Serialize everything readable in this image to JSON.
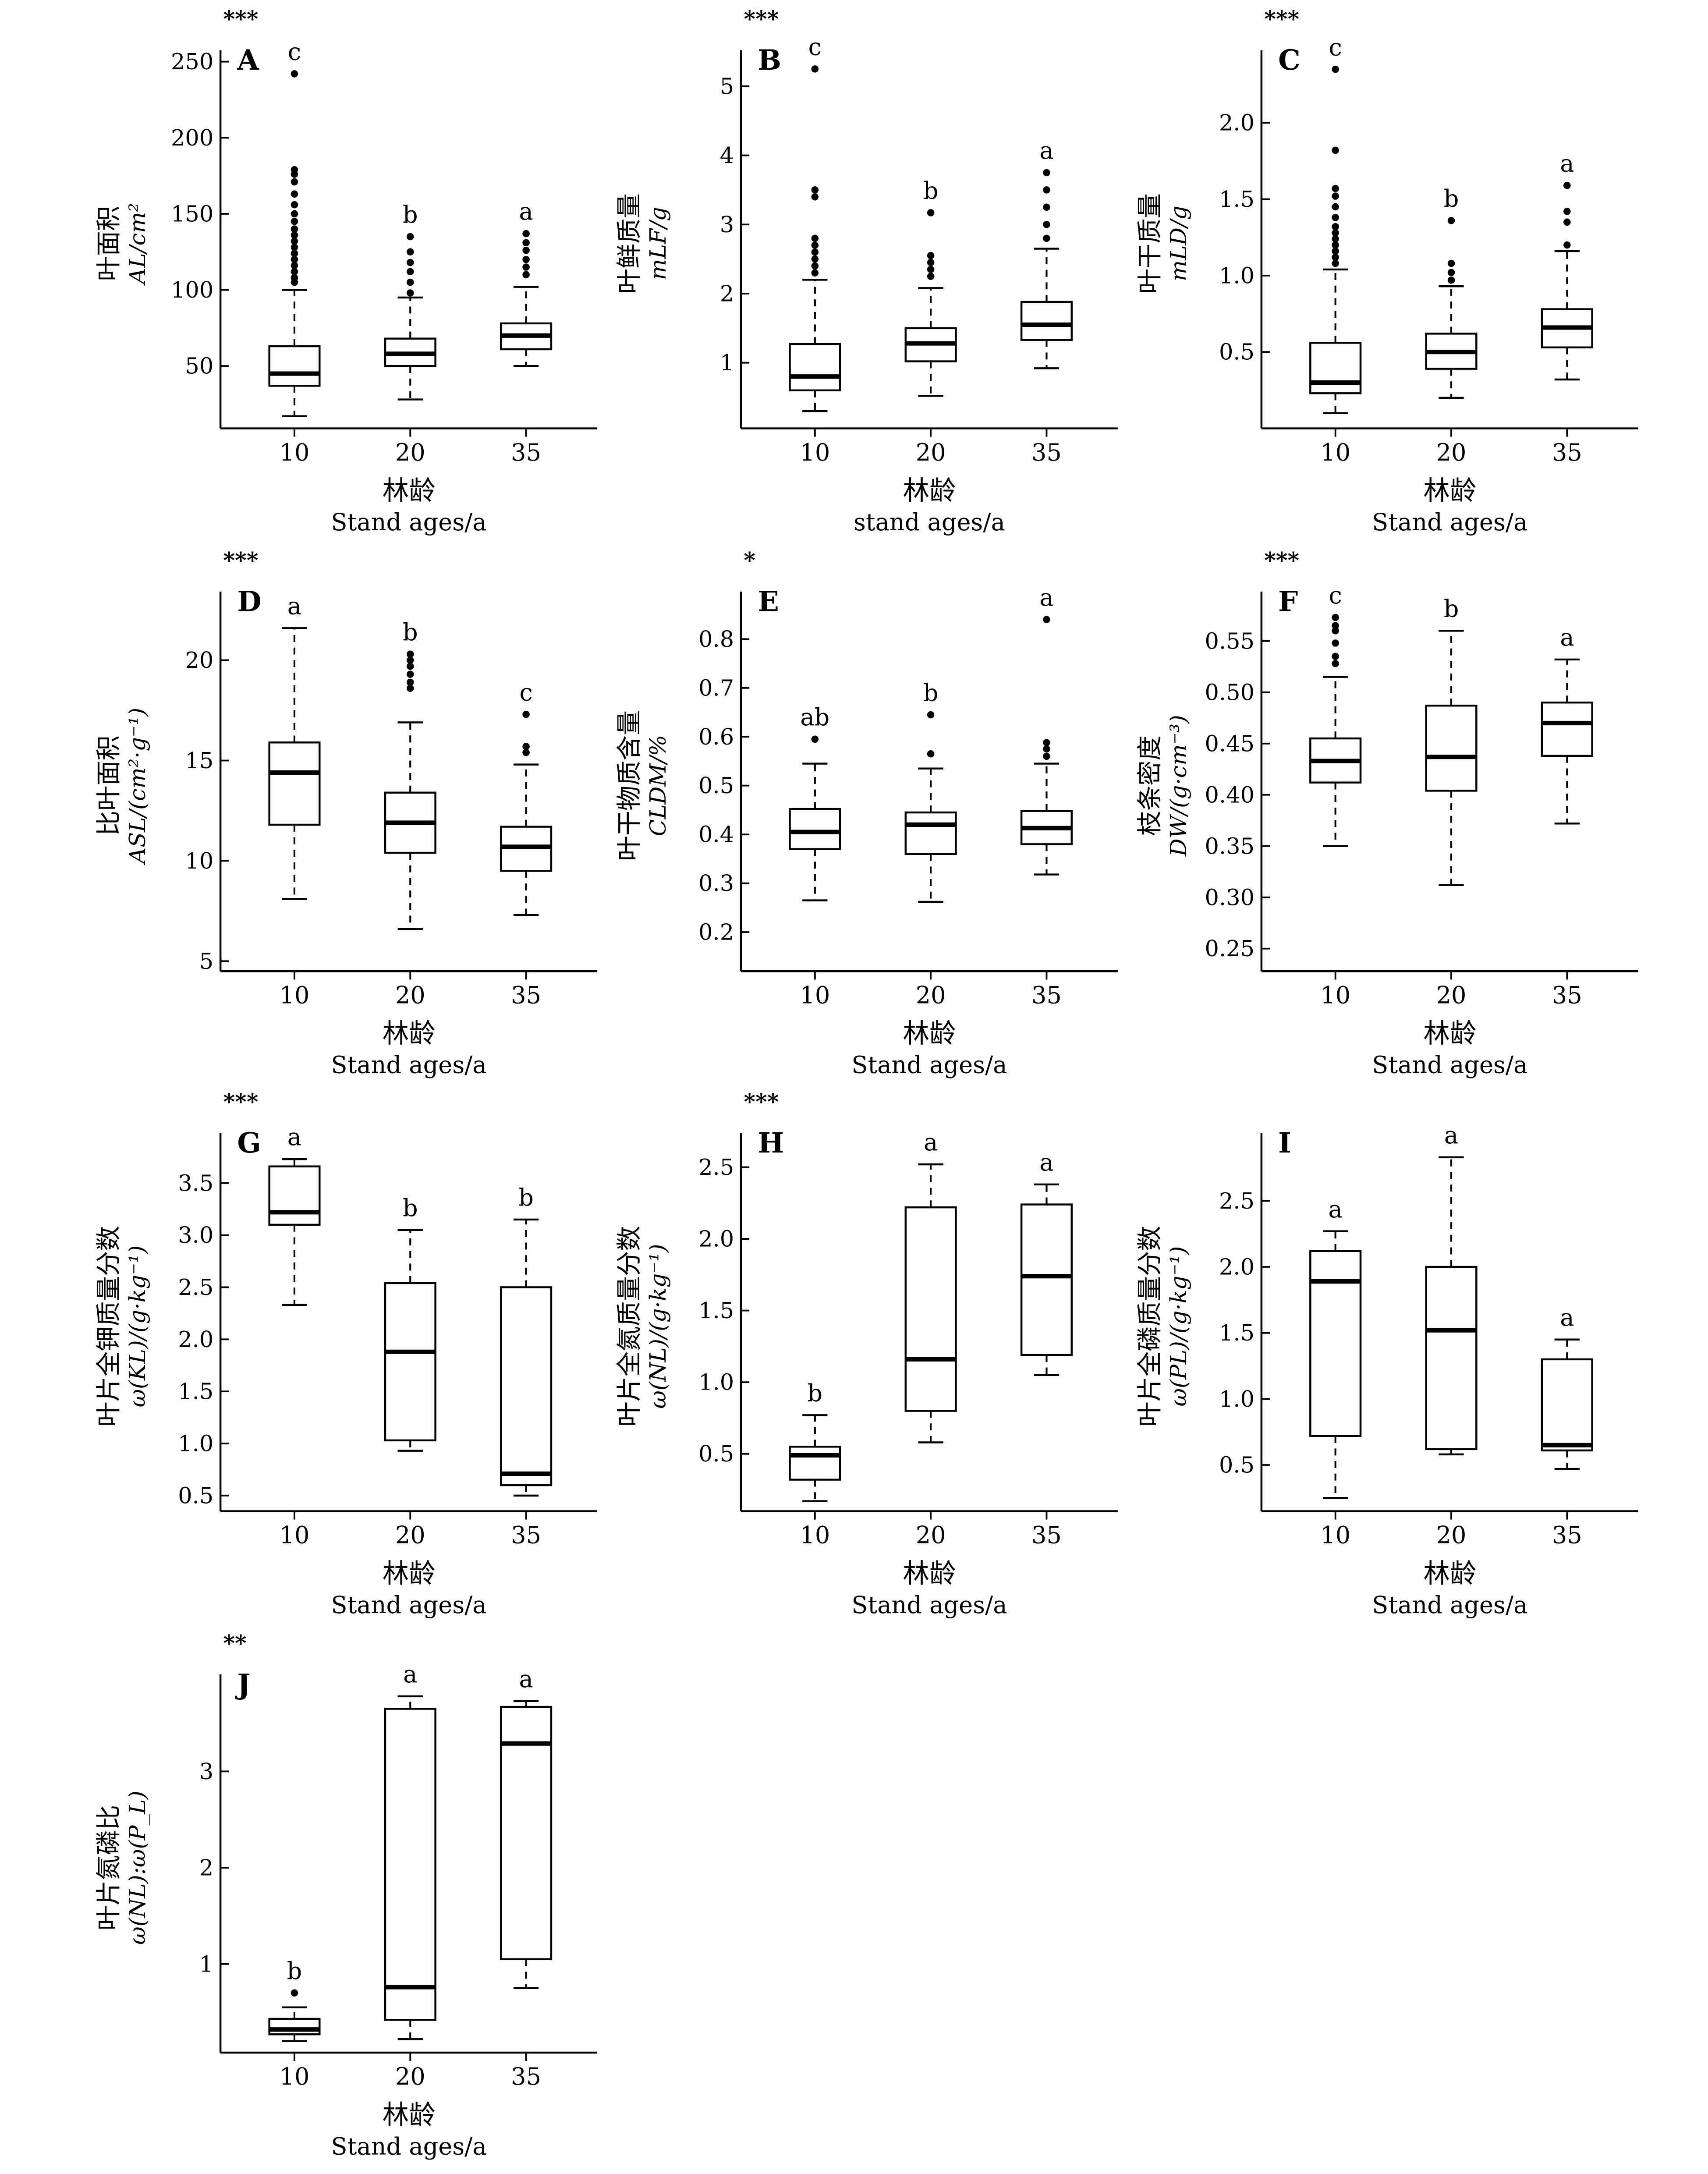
{
  "chart_data": [
    {
      "type": "box",
      "letter": "A",
      "sig": "***",
      "ylabel_cn": "叶面积",
      "ylabel_sym": "A",
      "ylabel_sub": "L",
      "ylabel_unit": "/cm²",
      "xlabel_cn": "林龄",
      "xlabel_en": "Stand ages/a",
      "categories": [
        "10",
        "20",
        "35"
      ],
      "ylim": [
        9,
        252
      ],
      "yticks": [
        "50",
        "100",
        "150",
        "200",
        "250"
      ],
      "ytick_values": [
        50,
        100,
        150,
        200,
        250
      ],
      "boxes": [
        {
          "whislo": 17,
          "q1": 37,
          "med": 45,
          "q3": 63,
          "whishi": 100,
          "letter": "c",
          "fliers": [
            105,
            108,
            112,
            116,
            120,
            124,
            128,
            132,
            136,
            140,
            145,
            150,
            156,
            163,
            171,
            176,
            179,
            242
          ]
        },
        {
          "whislo": 28,
          "q1": 50,
          "med": 58,
          "q3": 68,
          "whishi": 95,
          "letter": "b",
          "fliers": [
            98,
            105,
            112,
            118,
            125,
            135
          ]
        },
        {
          "whislo": 50,
          "q1": 61,
          "med": 70,
          "q3": 78,
          "whishi": 102,
          "letter": "a",
          "fliers": [
            110,
            115,
            120,
            126,
            131,
            137
          ]
        }
      ]
    },
    {
      "type": "box",
      "letter": "B",
      "sig": "***",
      "ylabel_cn": "叶鲜质量",
      "ylabel_sym": "m",
      "ylabel_sub": "LF",
      "ylabel_unit": "/g",
      "xlabel_cn": "林龄",
      "xlabel_en": "stand ages/a",
      "categories": [
        "10",
        "20",
        "35"
      ],
      "ylim": [
        0.05,
        5.4
      ],
      "yticks": [
        "1",
        "2",
        "3",
        "4",
        "5"
      ],
      "ytick_values": [
        1,
        2,
        3,
        4,
        5
      ],
      "boxes": [
        {
          "whislo": 0.3,
          "q1": 0.6,
          "med": 0.8,
          "q3": 1.27,
          "whishi": 2.2,
          "letter": "c",
          "fliers": [
            2.3,
            2.4,
            2.5,
            2.6,
            2.7,
            2.8,
            3.4,
            3.5,
            5.25
          ]
        },
        {
          "whislo": 0.52,
          "q1": 1.02,
          "med": 1.28,
          "q3": 1.5,
          "whishi": 2.08,
          "letter": "b",
          "fliers": [
            2.25,
            2.35,
            2.45,
            2.55,
            3.17
          ]
        },
        {
          "whislo": 0.92,
          "q1": 1.33,
          "med": 1.55,
          "q3": 1.88,
          "whishi": 2.65,
          "letter": "a",
          "fliers": [
            2.8,
            3.0,
            3.25,
            3.5,
            3.75
          ]
        }
      ]
    },
    {
      "type": "box",
      "letter": "C",
      "sig": "***",
      "ylabel_cn": "叶干质量",
      "ylabel_sym": "m",
      "ylabel_sub": "LD",
      "ylabel_unit": "/g",
      "xlabel_cn": "林龄",
      "xlabel_en": "Stand ages/a",
      "categories": [
        "10",
        "20",
        "35"
      ],
      "ylim": [
        0.0,
        2.42
      ],
      "yticks": [
        "0.5",
        "1.0",
        "1.5",
        "2.0"
      ],
      "ytick_values": [
        0.5,
        1.0,
        1.5,
        2.0
      ],
      "boxes": [
        {
          "whislo": 0.1,
          "q1": 0.23,
          "med": 0.3,
          "q3": 0.56,
          "whishi": 1.04,
          "letter": "c",
          "fliers": [
            1.08,
            1.12,
            1.16,
            1.2,
            1.24,
            1.28,
            1.32,
            1.38,
            1.45,
            1.52,
            1.57,
            1.82,
            2.35
          ]
        },
        {
          "whislo": 0.2,
          "q1": 0.39,
          "med": 0.5,
          "q3": 0.62,
          "whishi": 0.93,
          "letter": "b",
          "fliers": [
            0.97,
            1.02,
            1.08,
            1.36
          ]
        },
        {
          "whislo": 0.32,
          "q1": 0.53,
          "med": 0.66,
          "q3": 0.78,
          "whishi": 1.16,
          "letter": "a",
          "fliers": [
            1.2,
            1.35,
            1.42,
            1.59
          ]
        }
      ]
    },
    {
      "type": "box",
      "letter": "D",
      "sig": "***",
      "ylabel_cn": "比叶面积",
      "ylabel_sym": "A",
      "ylabel_sub": "SL",
      "ylabel_unit": "/(cm²·g⁻¹)",
      "xlabel_cn": "林龄",
      "xlabel_en": "Stand ages/a",
      "categories": [
        "10",
        "20",
        "35"
      ],
      "ylim": [
        4.5,
        23
      ],
      "yticks": [
        "5",
        "10",
        "15",
        "20"
      ],
      "ytick_values": [
        5,
        10,
        15,
        20
      ],
      "boxes": [
        {
          "whislo": 8.1,
          "q1": 11.8,
          "med": 14.4,
          "q3": 15.9,
          "whishi": 21.6,
          "letter": "a",
          "fliers": []
        },
        {
          "whislo": 6.6,
          "q1": 10.4,
          "med": 11.9,
          "q3": 13.4,
          "whishi": 16.9,
          "letter": "b",
          "fliers": [
            18.6,
            18.9,
            19.3,
            19.7,
            20.0,
            20.3
          ]
        },
        {
          "whislo": 7.3,
          "q1": 9.5,
          "med": 10.7,
          "q3": 11.7,
          "whishi": 14.8,
          "letter": "c",
          "fliers": [
            15.4,
            15.7,
            17.3
          ]
        }
      ]
    },
    {
      "type": "box",
      "letter": "E",
      "sig": "*",
      "ylabel_cn": "叶干物质含量",
      "ylabel_sym": "C",
      "ylabel_sub": "LDM",
      "ylabel_unit": "/%",
      "xlabel_cn": "林龄",
      "xlabel_en": "Stand ages/a",
      "categories": [
        "10",
        "20",
        "35"
      ],
      "ylim": [
        0.12,
        0.88
      ],
      "yticks": [
        "0.2",
        "0.3",
        "0.4",
        "0.5",
        "0.6",
        "0.7",
        "0.8"
      ],
      "ytick_values": [
        0.2,
        0.3,
        0.4,
        0.5,
        0.6,
        0.7,
        0.8
      ],
      "boxes": [
        {
          "whislo": 0.265,
          "q1": 0.37,
          "med": 0.405,
          "q3": 0.452,
          "whishi": 0.545,
          "letter": "ab",
          "fliers": [
            0.595
          ]
        },
        {
          "whislo": 0.262,
          "q1": 0.36,
          "med": 0.42,
          "q3": 0.445,
          "whishi": 0.535,
          "letter": "b",
          "fliers": [
            0.565,
            0.645
          ]
        },
        {
          "whislo": 0.318,
          "q1": 0.38,
          "med": 0.413,
          "q3": 0.448,
          "whishi": 0.545,
          "letter": "a",
          "fliers": [
            0.56,
            0.575,
            0.588,
            0.84
          ]
        }
      ]
    },
    {
      "type": "box",
      "letter": "F",
      "sig": "***",
      "ylabel_cn": "枝条密度",
      "ylabel_sym": "D",
      "ylabel_sub": "W",
      "ylabel_unit": "/(g·cm⁻³)",
      "xlabel_cn": "林龄",
      "xlabel_en": "Stand ages/a",
      "categories": [
        "10",
        "20",
        "35"
      ],
      "ylim": [
        0.228,
        0.59
      ],
      "yticks": [
        "0.25",
        "0.30",
        "0.35",
        "0.40",
        "0.45",
        "0.50",
        "0.55"
      ],
      "ytick_values": [
        0.25,
        0.3,
        0.35,
        0.4,
        0.45,
        0.5,
        0.55
      ],
      "boxes": [
        {
          "whislo": 0.35,
          "q1": 0.412,
          "med": 0.433,
          "q3": 0.455,
          "whishi": 0.515,
          "letter": "c",
          "fliers": [
            0.528,
            0.535,
            0.548,
            0.56,
            0.565,
            0.573
          ]
        },
        {
          "whislo": 0.312,
          "q1": 0.404,
          "med": 0.437,
          "q3": 0.487,
          "whishi": 0.56,
          "letter": "b",
          "fliers": []
        },
        {
          "whislo": 0.372,
          "q1": 0.438,
          "med": 0.47,
          "q3": 0.49,
          "whishi": 0.532,
          "letter": "a",
          "fliers": []
        }
      ]
    },
    {
      "type": "box",
      "letter": "G",
      "sig": "***",
      "ylabel_cn": "叶片全钾质量分数",
      "ylabel_sym": "ω",
      "ylabel_sub": "",
      "ylabel_unit": "(K",
      "ylabel_full": "ω(K_L)/(g·kg⁻¹)",
      "xlabel_cn": "林龄",
      "xlabel_en": "Stand ages/a",
      "categories": [
        "10",
        "20",
        "35"
      ],
      "ylim": [
        0.35,
        3.9
      ],
      "yticks": [
        "0.5",
        "1.0",
        "1.5",
        "2.0",
        "2.5",
        "3.0",
        "3.5"
      ],
      "ytick_values": [
        0.5,
        1.0,
        1.5,
        2.0,
        2.5,
        3.0,
        3.5
      ],
      "boxes": [
        {
          "whislo": 2.33,
          "q1": 3.1,
          "med": 3.22,
          "q3": 3.66,
          "whishi": 3.73,
          "letter": "a",
          "fliers": []
        },
        {
          "whislo": 0.93,
          "q1": 1.03,
          "med": 1.88,
          "q3": 2.54,
          "whishi": 3.05,
          "letter": "b",
          "fliers": []
        },
        {
          "whislo": 0.5,
          "q1": 0.6,
          "med": 0.71,
          "q3": 2.5,
          "whishi": 3.15,
          "letter": "b",
          "fliers": []
        }
      ]
    },
    {
      "type": "box",
      "letter": "H",
      "sig": "***",
      "ylabel_cn": "叶片全氮质量分数",
      "ylabel_full": "ω(NL)/(g·kg⁻¹)",
      "xlabel_cn": "林龄",
      "xlabel_en": "Stand ages/a",
      "categories": [
        "10",
        "20",
        "35"
      ],
      "ylim": [
        0.1,
        2.68
      ],
      "yticks": [
        "0.5",
        "1.0",
        "1.5",
        "2.0",
        "2.5"
      ],
      "ytick_values": [
        0.5,
        1.0,
        1.5,
        2.0,
        2.5
      ],
      "boxes": [
        {
          "whislo": 0.17,
          "q1": 0.32,
          "med": 0.49,
          "q3": 0.55,
          "whishi": 0.77,
          "letter": "b",
          "fliers": []
        },
        {
          "whislo": 0.58,
          "q1": 0.8,
          "med": 1.16,
          "q3": 2.22,
          "whishi": 2.52,
          "letter": "a",
          "fliers": []
        },
        {
          "whislo": 1.05,
          "q1": 1.19,
          "med": 1.74,
          "q3": 2.24,
          "whishi": 2.38,
          "letter": "a",
          "fliers": []
        }
      ]
    },
    {
      "type": "box",
      "letter": "I",
      "sig": "",
      "ylabel_cn": "叶片全磷质量分数",
      "ylabel_full": "ω(P_L)/(g·kg⁻¹)",
      "xlabel_cn": "林龄",
      "xlabel_en": "Stand ages/a",
      "categories": [
        "10",
        "20",
        "35"
      ],
      "ylim": [
        0.15,
        2.95
      ],
      "yticks": [
        "0.5",
        "1.0",
        "1.5",
        "2.0",
        "2.5"
      ],
      "ytick_values": [
        0.5,
        1.0,
        1.5,
        2.0,
        2.5
      ],
      "boxes": [
        {
          "whislo": 0.25,
          "q1": 0.72,
          "med": 1.89,
          "q3": 2.12,
          "whishi": 2.27,
          "letter": "a",
          "fliers": []
        },
        {
          "whislo": 0.58,
          "q1": 0.62,
          "med": 1.52,
          "q3": 2.0,
          "whishi": 2.83,
          "letter": "a",
          "fliers": []
        },
        {
          "whislo": 0.47,
          "q1": 0.61,
          "med": 0.65,
          "q3": 1.3,
          "whishi": 1.45,
          "letter": "a",
          "fliers": []
        }
      ]
    },
    {
      "type": "box",
      "letter": "J",
      "sig": "**",
      "ylabel_cn": "叶片氮磷比",
      "ylabel_full": "ω(N_L):ω(P_L)",
      "xlabel_cn": "林龄",
      "xlabel_en": "Stand ages/a",
      "categories": [
        "10",
        "20",
        "35"
      ],
      "ylim": [
        0.08,
        3.92
      ],
      "yticks": [
        "1",
        "2",
        "3"
      ],
      "ytick_values": [
        1,
        2,
        3
      ],
      "boxes": [
        {
          "whislo": 0.2,
          "q1": 0.27,
          "med": 0.32,
          "q3": 0.43,
          "whishi": 0.55,
          "letter": "b",
          "fliers": [
            0.7
          ]
        },
        {
          "whislo": 0.22,
          "q1": 0.42,
          "med": 0.76,
          "q3": 3.65,
          "whishi": 3.78,
          "letter": "a",
          "fliers": []
        },
        {
          "whislo": 0.75,
          "q1": 1.05,
          "med": 3.29,
          "q3": 3.67,
          "whishi": 3.73,
          "letter": "a",
          "fliers": []
        }
      ]
    }
  ]
}
